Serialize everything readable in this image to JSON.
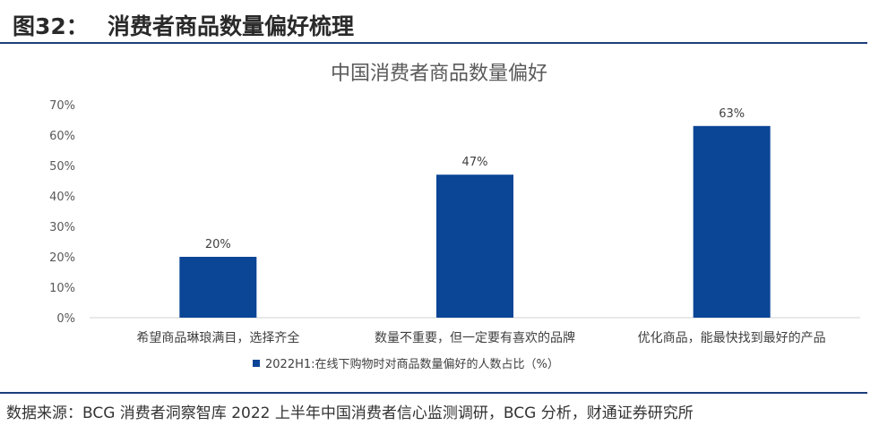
{
  "figure": {
    "number": "图32：",
    "title": "消费者商品数量偏好梳理"
  },
  "source": "数据来源：BCG 消费者洞察智库 2022 上半年中国消费者信心监测调研，BCG 分析，财通证券研究所",
  "colors": {
    "bar": "#0b4596",
    "rule": "#1c3f7a"
  },
  "chart_data": {
    "type": "bar",
    "title": "中国消费者商品数量偏好",
    "categories": [
      "希望商品琳琅满目，选择齐全",
      "数量不重要，但一定要有喜欢的品牌",
      "优化商品，能最快找到最好的产品"
    ],
    "series": [
      {
        "name": "2022H1:在线下购物时对商品数量偏好的人数占比（%）",
        "values": [
          20,
          47,
          63
        ],
        "labels": [
          "20%",
          "47%",
          "63%"
        ]
      }
    ],
    "yticks": [
      "0%",
      "10%",
      "20%",
      "30%",
      "40%",
      "50%",
      "60%",
      "70%"
    ],
    "ylim": [
      0,
      70
    ],
    "grid": false,
    "legend": "bottom"
  }
}
